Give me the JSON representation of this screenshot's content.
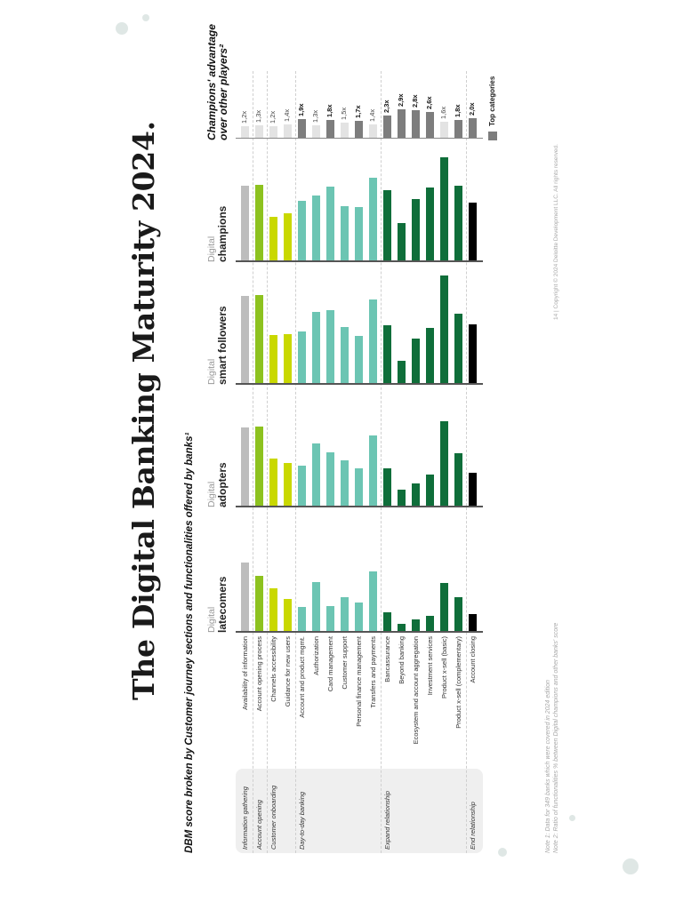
{
  "title": "The Digital Banking Maturity 2024.",
  "subtitle": "DBM score broken by Customer journey sections and functionalities offered by banks¹",
  "advantage_title_line1": "Champions' advantage",
  "advantage_title_line2": "over other players²",
  "legend_label": "Top categories",
  "notes": {
    "note1": "Note 1: Data for 349 banks which were covered in 2024 edition",
    "note2": "Note 2: Ratio of functionalities % between Digital champions and other banks' score"
  },
  "copyright": "14 | Copyright © 2024 Deloitte Development LLC. All rights reserved.",
  "colors": {
    "gray": "#bdbdbd",
    "lime_dark": "#8dc21f",
    "lime": "#c9d800",
    "teal": "#6cc5b3",
    "green_dark": "#0f6e3a",
    "black": "#000000",
    "adv_top": "#7d7d7d",
    "adv_other": "#e3e3e3"
  },
  "stages": [
    {
      "label": "Information gathering",
      "rows": [
        0
      ]
    },
    {
      "label": "Account opening",
      "rows": [
        1
      ]
    },
    {
      "label": "Customer onboarding",
      "rows": [
        2,
        3
      ]
    },
    {
      "label": "Day-to-day banking",
      "rows": [
        4,
        5,
        6,
        7,
        8,
        9
      ]
    },
    {
      "label": "Expand relationship",
      "rows": [
        10,
        11,
        12,
        13,
        14,
        15
      ]
    },
    {
      "label": "End relationship",
      "rows": [
        16
      ]
    }
  ],
  "columns": [
    {
      "prefix": "Digital",
      "name": "latecomers"
    },
    {
      "prefix": "Digital",
      "name": "adopters"
    },
    {
      "prefix": "Digital",
      "name": "smart followers"
    },
    {
      "prefix": "Digital",
      "name": "champions"
    }
  ],
  "chart_data": {
    "type": "bar",
    "orientation": "horizontal (page rotated 90°)",
    "title": "DBM score broken by Customer journey sections and functionalities offered by banks",
    "categories": [
      "Availability of information",
      "Account opening process",
      "Channels accessibility",
      "Guidance for new users",
      "Account and product mgmt.",
      "Authorization",
      "Card management",
      "Customer support",
      "Personal finance management",
      "Transfers and payments",
      "Bancassurance",
      "Beyond banking",
      "Ecosystem and account aggregation",
      "Investment services",
      "Product x-sell (basic)",
      "Product x-sell (complementary)",
      "Account closing"
    ],
    "category_colors": [
      "gray",
      "lime_dark",
      "lime",
      "lime",
      "teal",
      "teal",
      "teal",
      "teal",
      "teal",
      "teal",
      "green_dark",
      "green_dark",
      "green_dark",
      "green_dark",
      "green_dark",
      "green_dark",
      "black"
    ],
    "series": [
      {
        "name": "Digital latecomers",
        "values": [
          77,
          62,
          48,
          36,
          27,
          55,
          28,
          38,
          32,
          67,
          21,
          8,
          13,
          17,
          54,
          38,
          19
        ]
      },
      {
        "name": "Digital adopters",
        "values": [
          88,
          89,
          53,
          48,
          45,
          70,
          60,
          51,
          42,
          79,
          42,
          18,
          25,
          35,
          95,
          59,
          37
        ]
      },
      {
        "name": "Digital smart followers",
        "values": [
          98,
          99,
          54,
          55,
          58,
          80,
          82,
          63,
          53,
          94,
          65,
          25,
          50,
          62,
          121,
          78,
          66
        ]
      },
      {
        "name": "Digital champions",
        "values": [
          84,
          85,
          49,
          53,
          67,
          73,
          83,
          61,
          60,
          93,
          79,
          42,
          69,
          82,
          116,
          84,
          65
        ]
      }
    ],
    "units": "relative bar length (px, no axis shown)",
    "advantage": {
      "title": "Champions' advantage over other players",
      "labels": [
        "1,2x",
        "1,3x",
        "1,2x",
        "1,4x",
        "1,9x",
        "1,3x",
        "1,8x",
        "1,5x",
        "1,7x",
        "1,4x",
        "2,3x",
        "2,9x",
        "2,8x",
        "2,6x",
        "1,6x",
        "1,8x",
        "2,0x"
      ],
      "values": [
        1.2,
        1.3,
        1.2,
        1.4,
        1.9,
        1.3,
        1.8,
        1.5,
        1.7,
        1.4,
        2.3,
        2.9,
        2.8,
        2.6,
        1.6,
        1.8,
        2.0
      ],
      "top_category": [
        false,
        false,
        false,
        false,
        true,
        false,
        true,
        false,
        true,
        false,
        true,
        true,
        true,
        true,
        false,
        true,
        true
      ]
    },
    "legend": [
      {
        "label": "Top categories",
        "color": "#7d7d7d"
      }
    ],
    "grid": false
  }
}
